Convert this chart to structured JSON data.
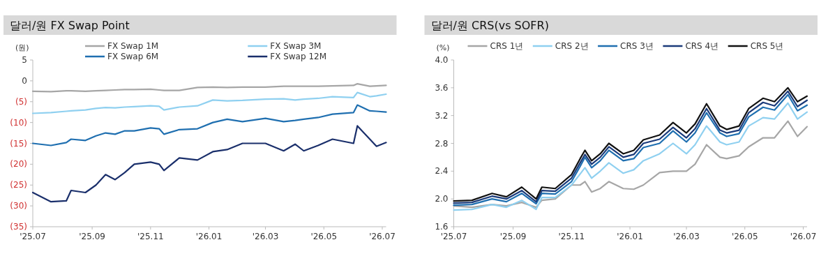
{
  "chart_data": [
    {
      "type": "line",
      "title": "달러/원 FX Swap Point",
      "ylabel": "(원)",
      "legend": "top",
      "grid": false,
      "marker": "none",
      "line_style": "solid",
      "x": [
        "2025-07-01",
        "2025-07-20",
        "2025-08-05",
        "2025-08-10",
        "2025-08-25",
        "2025-09-05",
        "2025-09-15",
        "2025-09-25",
        "2025-10-05",
        "2025-10-15",
        "2025-11-01",
        "2025-11-10",
        "2025-11-15",
        "2025-12-01",
        "2025-12-20",
        "2026-01-05",
        "2026-01-20",
        "2026-02-05",
        "2026-03-01",
        "2026-03-20",
        "2026-04-01",
        "2026-04-10",
        "2026-04-25",
        "2026-05-10",
        "2026-06-01",
        "2026-06-05",
        "2026-06-18",
        "2026-06-25",
        "2026-07-05"
      ],
      "xlim": [
        "2025-07-01",
        "2026-07-05"
      ],
      "xticks": [
        {
          "value": "2025-07-01",
          "label": "'25.07"
        },
        {
          "value": "2025-09-01",
          "label": "'25.09"
        },
        {
          "value": "2025-11-01",
          "label": "'25.11"
        },
        {
          "value": "2026-01-01",
          "label": "'26.01"
        },
        {
          "value": "2026-03-01",
          "label": "'26.03"
        },
        {
          "value": "2026-05-01",
          "label": "'26.05"
        },
        {
          "value": "2026-07-01",
          "label": "'26.07"
        }
      ],
      "ylim": [
        -35,
        5
      ],
      "yticks": [
        5,
        0,
        {
          "value": -5,
          "label": "(5)"
        },
        {
          "value": -10,
          "label": "(10)"
        },
        {
          "value": -15,
          "label": "(15)"
        },
        {
          "value": -20,
          "label": "(20)"
        },
        {
          "value": -25,
          "label": "(25)"
        },
        {
          "value": -30,
          "label": "(30)"
        },
        {
          "value": -35,
          "label": "(35)"
        }
      ],
      "series": [
        {
          "name": "FX Swap 1M",
          "color": "#a6a6a6",
          "values": [
            -2.5,
            -2.6,
            -2.4,
            -2.4,
            -2.5,
            -2.4,
            -2.3,
            -2.2,
            -2.1,
            -2.1,
            -2.0,
            -2.2,
            -2.3,
            -2.3,
            -1.6,
            -1.5,
            -1.6,
            -1.5,
            -1.5,
            -1.3,
            -1.3,
            -1.3,
            -1.3,
            -1.2,
            -1.1,
            -0.7,
            -1.3,
            -1.2,
            -1.1
          ]
        },
        {
          "name": "FX Swap 3M",
          "color": "#8fd0f0",
          "values": [
            -7.8,
            -7.6,
            -7.3,
            -7.2,
            -7.0,
            -6.6,
            -6.4,
            -6.5,
            -6.3,
            -6.2,
            -6.0,
            -6.1,
            -7.0,
            -6.3,
            -6.0,
            -4.6,
            -4.8,
            -4.7,
            -4.4,
            -4.3,
            -4.6,
            -4.4,
            -4.2,
            -3.8,
            -4.0,
            -2.8,
            -3.8,
            -3.6,
            -3.2
          ]
        },
        {
          "name": "FX Swap 6M",
          "color": "#1f6fb0",
          "values": [
            -15,
            -15.5,
            -14.8,
            -14,
            -14.3,
            -13.2,
            -12.5,
            -12.8,
            -12,
            -12,
            -11.3,
            -11.5,
            -12.8,
            -11.7,
            -11.5,
            -10,
            -9.2,
            -9.8,
            -9,
            -9.8,
            -9.5,
            -9.2,
            -8.8,
            -8,
            -7.6,
            -5.8,
            -7.2,
            -7.3,
            -7.5
          ]
        },
        {
          "name": "FX Swap 12M",
          "color": "#1a2f6b",
          "values": [
            -26.8,
            -29,
            -28.8,
            -26.3,
            -26.8,
            -25,
            -22.5,
            -23.7,
            -22,
            -20,
            -19.5,
            -20,
            -21.5,
            -18.5,
            -19,
            -17,
            -16.5,
            -15,
            -15,
            -16.8,
            -15.2,
            -16.8,
            -15.5,
            -14,
            -15,
            -10.8,
            -14,
            -15.7,
            -14.8
          ]
        }
      ]
    },
    {
      "type": "line",
      "title": "달러/원 CRS(vs SOFR)",
      "ylabel": "(%)",
      "legend": "top",
      "grid": false,
      "marker": "none",
      "line_style": "solid",
      "x": [
        "2025-07-01",
        "2025-07-20",
        "2025-08-10",
        "2025-08-25",
        "2025-09-10",
        "2025-09-25",
        "2025-10-01",
        "2025-10-15",
        "2025-11-01",
        "2025-11-10",
        "2025-11-15",
        "2025-11-22",
        "2025-12-01",
        "2025-12-10",
        "2025-12-25",
        "2026-01-05",
        "2026-01-15",
        "2026-02-01",
        "2026-02-15",
        "2026-03-01",
        "2026-03-10",
        "2026-03-22",
        "2026-04-05",
        "2026-04-12",
        "2026-04-25",
        "2026-05-05",
        "2026-05-20",
        "2026-06-01",
        "2026-06-15",
        "2026-06-25",
        "2026-07-05"
      ],
      "xlim": [
        "2025-07-01",
        "2026-07-05"
      ],
      "xticks": [
        {
          "value": "2025-07-01",
          "label": "'25.07"
        },
        {
          "value": "2025-09-01",
          "label": "'25.09"
        },
        {
          "value": "2025-11-01",
          "label": "'25.11"
        },
        {
          "value": "2026-01-01",
          "label": "'26.01"
        },
        {
          "value": "2026-03-01",
          "label": "'26.03"
        },
        {
          "value": "2026-05-01",
          "label": "'26.05"
        },
        {
          "value": "2026-07-01",
          "label": "'26.07"
        }
      ],
      "ylim": [
        1.6,
        4.0
      ],
      "yticks": [
        {
          "value": 1.6,
          "label": "1.6"
        },
        {
          "value": 2.0,
          "label": "2.0"
        },
        {
          "value": 2.4,
          "label": "2.4"
        },
        {
          "value": 2.8,
          "label": "2.8"
        },
        {
          "value": 3.2,
          "label": "3.2"
        },
        {
          "value": 3.6,
          "label": "3.6"
        },
        {
          "value": 4.0,
          "label": "4.0"
        }
      ],
      "series": [
        {
          "name": "CRS 1년",
          "color": "#a6a6a6",
          "values": [
            1.9,
            1.88,
            1.92,
            1.9,
            1.95,
            1.88,
            1.98,
            2.0,
            2.2,
            2.2,
            2.25,
            2.1,
            2.15,
            2.25,
            2.15,
            2.14,
            2.2,
            2.38,
            2.4,
            2.4,
            2.5,
            2.78,
            2.6,
            2.58,
            2.62,
            2.75,
            2.88,
            2.88,
            3.12,
            2.9,
            3.04
          ]
        },
        {
          "name": "CRS 2년",
          "color": "#8fd0f0",
          "values": [
            1.84,
            1.85,
            1.92,
            1.88,
            1.98,
            1.85,
            2.02,
            2.02,
            2.2,
            2.36,
            2.45,
            2.3,
            2.4,
            2.52,
            2.37,
            2.42,
            2.55,
            2.65,
            2.8,
            2.65,
            2.78,
            3.05,
            2.82,
            2.78,
            2.82,
            3.05,
            3.17,
            3.15,
            3.38,
            3.15,
            3.25
          ]
        },
        {
          "name": "CRS 3년",
          "color": "#1f6fb0",
          "values": [
            1.91,
            1.92,
            2.0,
            1.96,
            2.08,
            1.93,
            2.08,
            2.07,
            2.25,
            2.47,
            2.6,
            2.45,
            2.55,
            2.7,
            2.55,
            2.58,
            2.74,
            2.8,
            2.98,
            2.82,
            2.95,
            3.24,
            2.95,
            2.9,
            2.94,
            3.18,
            3.32,
            3.28,
            3.5,
            3.27,
            3.35
          ]
        },
        {
          "name": "CRS 4년",
          "color": "#1a3a7a",
          "values": [
            1.94,
            1.95,
            2.04,
            2.0,
            2.12,
            1.96,
            2.12,
            2.11,
            2.3,
            2.52,
            2.64,
            2.5,
            2.6,
            2.75,
            2.6,
            2.64,
            2.8,
            2.86,
            3.03,
            2.88,
            3.01,
            3.3,
            2.99,
            2.95,
            2.99,
            3.24,
            3.39,
            3.34,
            3.55,
            3.33,
            3.42
          ]
        },
        {
          "name": "CRS 5년",
          "color": "#111111",
          "values": [
            1.97,
            1.98,
            2.08,
            2.03,
            2.17,
            2.0,
            2.17,
            2.15,
            2.35,
            2.58,
            2.7,
            2.55,
            2.65,
            2.8,
            2.65,
            2.7,
            2.85,
            2.92,
            3.1,
            2.95,
            3.08,
            3.37,
            3.05,
            3.0,
            3.05,
            3.3,
            3.45,
            3.4,
            3.6,
            3.4,
            3.48
          ]
        }
      ]
    }
  ]
}
